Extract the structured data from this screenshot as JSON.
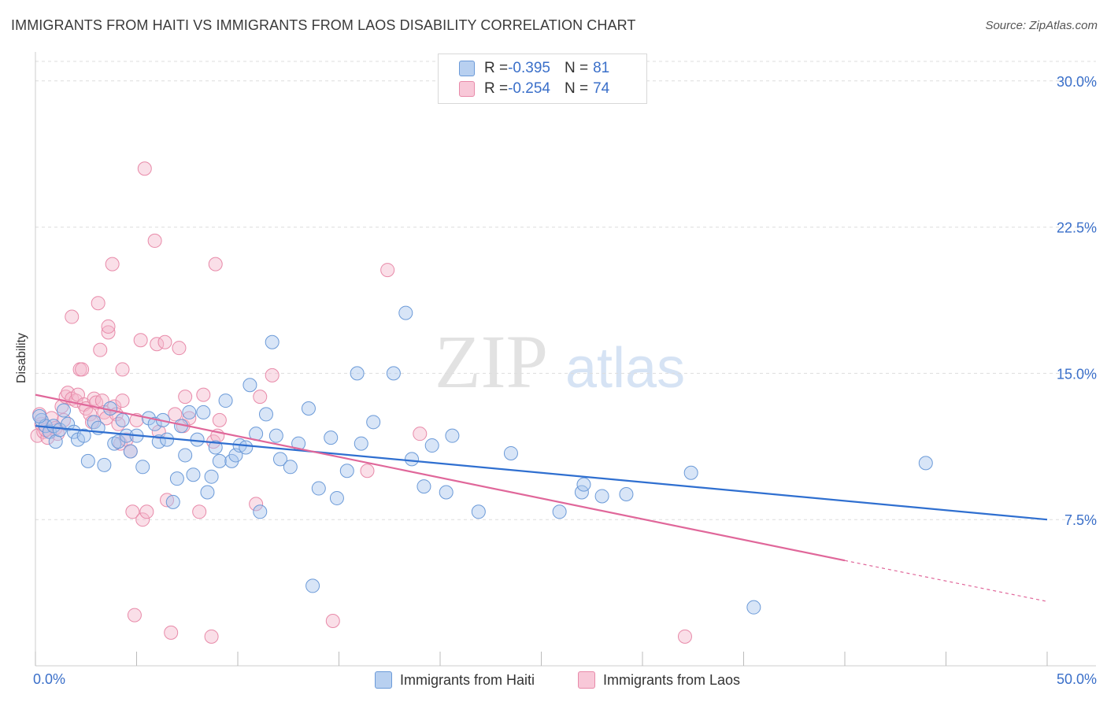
{
  "title": "IMMIGRANTS FROM HAITI VS IMMIGRANTS FROM LAOS DISABILITY CORRELATION CHART",
  "source": "Source: ZipAtlas.com",
  "watermark": {
    "zip": "ZIP",
    "atlas": "atlas"
  },
  "legend": {
    "rows": [
      {
        "r_label": "R = ",
        "r_value": "-0.395",
        "n_label": "N = ",
        "n_value": "81"
      },
      {
        "r_label": "R = ",
        "r_value": "-0.254",
        "n_label": "N = ",
        "n_value": "74"
      }
    ]
  },
  "bottom_legend": [
    "Immigrants from Haiti",
    "Immigrants from Laos"
  ],
  "colors": {
    "haiti_fill": "#a9c6ee",
    "haiti_stroke": "#6b9ad8",
    "haiti_line": "#2f6fd0",
    "laos_fill": "#f5b8cc",
    "laos_stroke": "#e88aa9",
    "laos_line": "#e0679a",
    "tick_label": "#3a6fc9",
    "grid": "#dddddd"
  },
  "chart_data": {
    "type": "scatter",
    "title": "IMMIGRANTS FROM HAITI VS IMMIGRANTS FROM LAOS DISABILITY CORRELATION CHART",
    "xlabel": "",
    "ylabel": "Disability",
    "xlim": [
      0,
      50
    ],
    "ylim": [
      0,
      31
    ],
    "x_tick_labels": [
      "0.0%",
      "50.0%"
    ],
    "y_ticks": [
      7.5,
      15.0,
      22.5,
      30.0
    ],
    "y_tick_labels": [
      "7.5%",
      "15.0%",
      "22.5%",
      "30.0%"
    ],
    "grid": "horizontal dashed",
    "legend_placement": "top-center",
    "series": [
      {
        "name": "Immigrants from Haiti",
        "r": -0.395,
        "n": 81,
        "trend": {
          "x": [
            0,
            50
          ],
          "y": [
            12.3,
            7.5
          ]
        },
        "points": [
          [
            0.3,
            12.6
          ],
          [
            0.5,
            12.3
          ],
          [
            0.7,
            12.0
          ],
          [
            0.9,
            12.3
          ],
          [
            1.0,
            11.5
          ],
          [
            1.2,
            12.1
          ],
          [
            1.4,
            13.1
          ],
          [
            1.6,
            12.4
          ],
          [
            1.9,
            12.0
          ],
          [
            2.1,
            11.6
          ],
          [
            2.4,
            11.8
          ],
          [
            2.6,
            10.5
          ],
          [
            2.9,
            12.5
          ],
          [
            3.1,
            12.2
          ],
          [
            3.4,
            10.3
          ],
          [
            3.7,
            13.2
          ],
          [
            3.9,
            11.4
          ],
          [
            4.1,
            11.5
          ],
          [
            4.3,
            12.6
          ],
          [
            4.5,
            11.8
          ],
          [
            4.7,
            11.0
          ],
          [
            5.0,
            11.8
          ],
          [
            5.3,
            10.2
          ],
          [
            5.6,
            12.7
          ],
          [
            5.9,
            12.4
          ],
          [
            6.1,
            11.5
          ],
          [
            6.3,
            12.6
          ],
          [
            6.5,
            11.6
          ],
          [
            6.8,
            8.4
          ],
          [
            7.0,
            9.6
          ],
          [
            7.2,
            12.3
          ],
          [
            7.4,
            10.8
          ],
          [
            7.6,
            13.0
          ],
          [
            7.8,
            9.8
          ],
          [
            8.0,
            11.6
          ],
          [
            8.3,
            13.0
          ],
          [
            8.5,
            8.9
          ],
          [
            8.7,
            9.7
          ],
          [
            8.9,
            11.2
          ],
          [
            9.1,
            10.5
          ],
          [
            9.4,
            13.6
          ],
          [
            9.7,
            10.5
          ],
          [
            9.9,
            10.8
          ],
          [
            10.1,
            11.3
          ],
          [
            10.4,
            11.2
          ],
          [
            10.6,
            14.4
          ],
          [
            10.9,
            11.9
          ],
          [
            11.1,
            7.9
          ],
          [
            11.4,
            12.9
          ],
          [
            11.7,
            16.6
          ],
          [
            11.9,
            11.8
          ],
          [
            12.1,
            10.6
          ],
          [
            12.6,
            10.2
          ],
          [
            13.0,
            11.4
          ],
          [
            13.5,
            13.2
          ],
          [
            13.7,
            4.1
          ],
          [
            14.0,
            9.1
          ],
          [
            14.6,
            11.7
          ],
          [
            14.9,
            8.6
          ],
          [
            15.4,
            10.0
          ],
          [
            15.9,
            15.0
          ],
          [
            16.1,
            11.4
          ],
          [
            16.7,
            12.5
          ],
          [
            17.7,
            15.0
          ],
          [
            18.3,
            18.1
          ],
          [
            18.6,
            10.6
          ],
          [
            19.2,
            9.2
          ],
          [
            19.6,
            11.3
          ],
          [
            20.3,
            8.9
          ],
          [
            20.6,
            11.8
          ],
          [
            21.9,
            7.9
          ],
          [
            23.5,
            10.9
          ],
          [
            25.9,
            7.9
          ],
          [
            27.0,
            8.9
          ],
          [
            27.1,
            9.3
          ],
          [
            28.0,
            8.7
          ],
          [
            29.2,
            8.8
          ],
          [
            32.4,
            9.9
          ],
          [
            35.5,
            3.0
          ],
          [
            44.0,
            10.4
          ],
          [
            0.2,
            12.8
          ]
        ]
      },
      {
        "name": "Immigrants from Laos",
        "r": -0.254,
        "n": 74,
        "trend": {
          "x": [
            0,
            40
          ],
          "y": [
            13.9,
            5.4
          ]
        },
        "trend_dashed": {
          "x": [
            40,
            50
          ],
          "y": [
            5.4,
            3.3
          ]
        },
        "points": [
          [
            0.1,
            11.8
          ],
          [
            0.3,
            12.4
          ],
          [
            0.4,
            12.0
          ],
          [
            0.6,
            11.7
          ],
          [
            0.8,
            12.7
          ],
          [
            1.0,
            12.2
          ],
          [
            1.1,
            11.9
          ],
          [
            1.3,
            13.3
          ],
          [
            1.4,
            12.6
          ],
          [
            1.5,
            13.8
          ],
          [
            1.6,
            14.0
          ],
          [
            1.8,
            13.7
          ],
          [
            1.8,
            17.9
          ],
          [
            2.0,
            13.6
          ],
          [
            2.1,
            13.9
          ],
          [
            2.2,
            15.2
          ],
          [
            2.3,
            15.2
          ],
          [
            2.4,
            13.4
          ],
          [
            2.5,
            13.2
          ],
          [
            2.7,
            12.9
          ],
          [
            2.8,
            12.5
          ],
          [
            2.9,
            13.7
          ],
          [
            3.0,
            13.5
          ],
          [
            3.1,
            18.6
          ],
          [
            3.2,
            16.2
          ],
          [
            3.3,
            13.6
          ],
          [
            3.4,
            13.0
          ],
          [
            3.5,
            12.7
          ],
          [
            3.6,
            17.1
          ],
          [
            3.6,
            17.4
          ],
          [
            3.8,
            20.6
          ],
          [
            3.9,
            13.3
          ],
          [
            4.0,
            12.9
          ],
          [
            4.1,
            12.4
          ],
          [
            4.2,
            11.4
          ],
          [
            4.3,
            13.6
          ],
          [
            4.3,
            15.2
          ],
          [
            4.5,
            11.6
          ],
          [
            4.7,
            11.0
          ],
          [
            4.8,
            7.9
          ],
          [
            4.9,
            2.6
          ],
          [
            5.0,
            12.6
          ],
          [
            5.2,
            16.7
          ],
          [
            5.3,
            7.5
          ],
          [
            5.4,
            25.5
          ],
          [
            5.5,
            7.9
          ],
          [
            5.9,
            21.8
          ],
          [
            6.0,
            16.5
          ],
          [
            6.1,
            12.0
          ],
          [
            6.4,
            16.6
          ],
          [
            6.5,
            8.5
          ],
          [
            6.7,
            1.7
          ],
          [
            6.9,
            12.9
          ],
          [
            7.1,
            16.3
          ],
          [
            7.3,
            12.3
          ],
          [
            7.4,
            13.8
          ],
          [
            7.6,
            12.7
          ],
          [
            8.1,
            7.9
          ],
          [
            8.3,
            13.9
          ],
          [
            8.7,
            1.5
          ],
          [
            8.8,
            11.5
          ],
          [
            8.9,
            20.6
          ],
          [
            9.0,
            11.8
          ],
          [
            9.1,
            12.6
          ],
          [
            10.9,
            8.3
          ],
          [
            11.1,
            13.8
          ],
          [
            11.7,
            14.9
          ],
          [
            14.7,
            2.3
          ],
          [
            16.4,
            10.0
          ],
          [
            17.4,
            20.3
          ],
          [
            19.0,
            11.9
          ],
          [
            32.1,
            1.5
          ],
          [
            0.2,
            12.9
          ],
          [
            0.5,
            12.1
          ]
        ]
      }
    ]
  }
}
